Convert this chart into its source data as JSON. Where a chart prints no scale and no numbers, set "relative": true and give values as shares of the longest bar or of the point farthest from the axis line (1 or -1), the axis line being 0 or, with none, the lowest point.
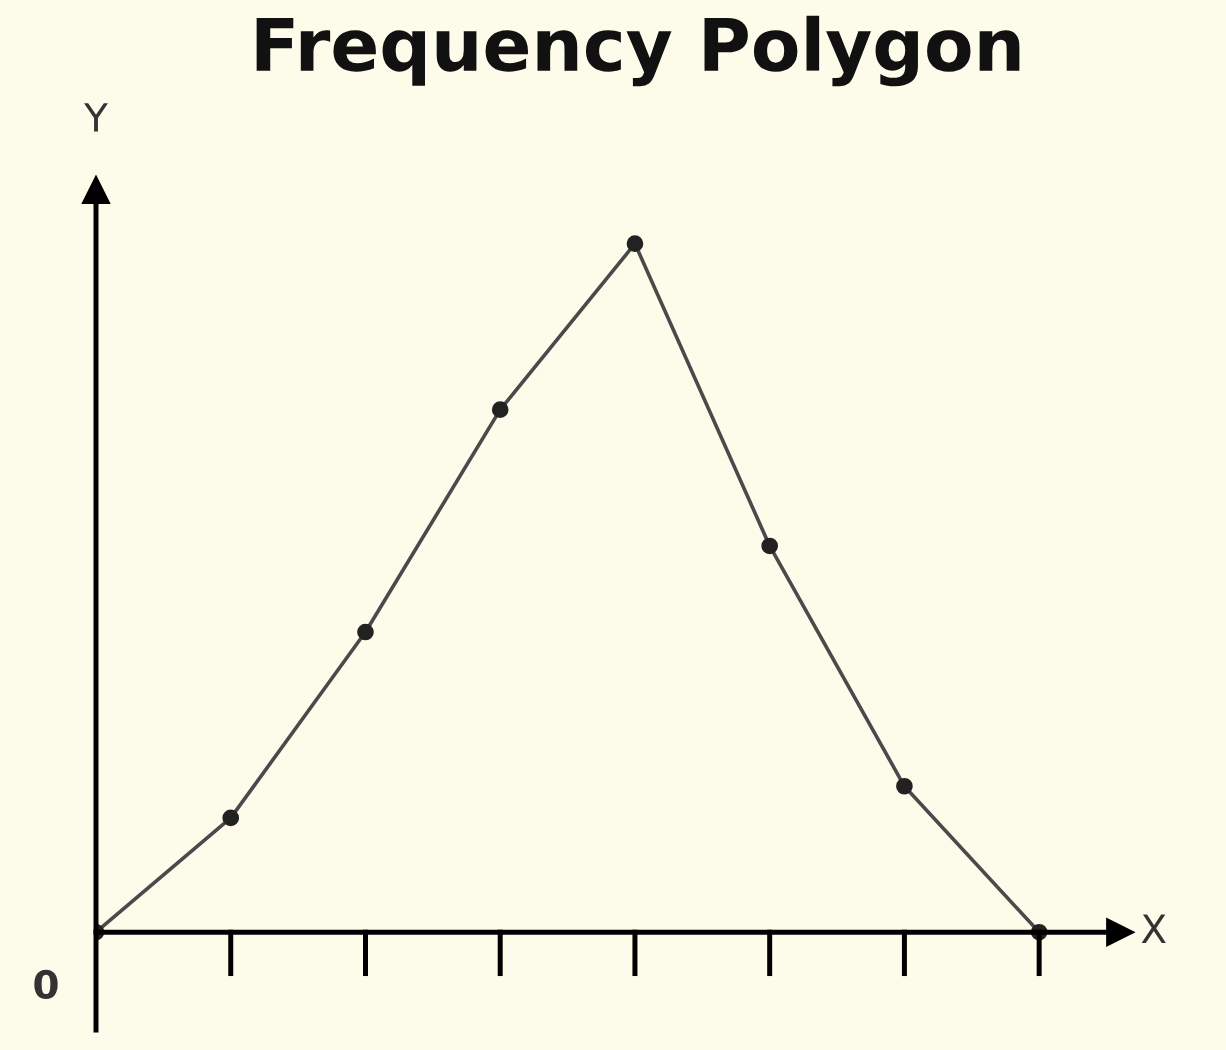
{
  "chart_data": {
    "type": "line",
    "title": "Frequency Polygon",
    "xlabel": "X",
    "ylabel": "Y",
    "relative": true,
    "categories": [
      null,
      null,
      null,
      null,
      null,
      null,
      null,
      null
    ],
    "series": [
      {
        "color": "#4a4a4a",
        "values": [
          0,
          0.166,
          0.436,
          0.759,
          1,
          0.561,
          0.212,
          0
        ]
      }
    ],
    "marker": "circle",
    "line_style": "solid",
    "grid": false,
    "legend": false,
    "annotations": [
      "0"
    ]
  }
}
